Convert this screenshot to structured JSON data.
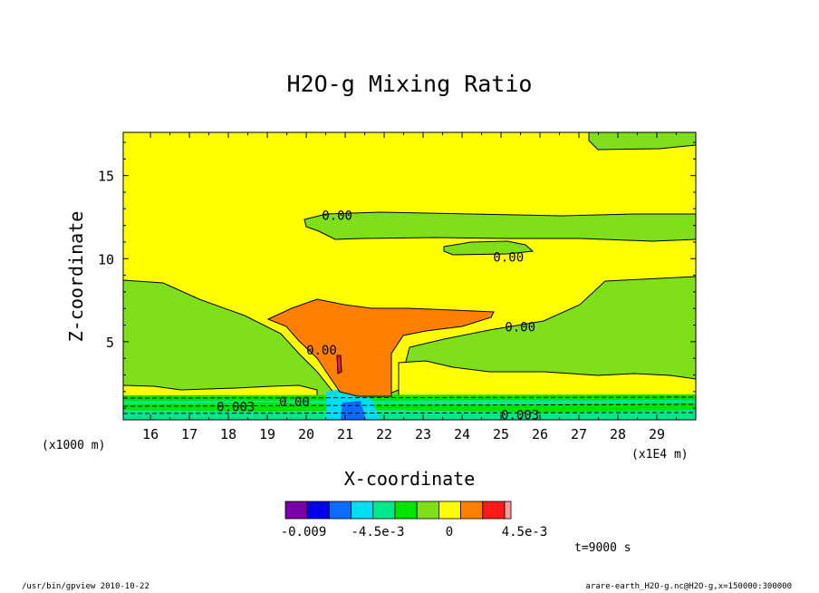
{
  "chart_data": {
    "type": "heatmap",
    "title": "H2O-g Mixing Ratio",
    "xlabel": "X-coordinate",
    "ylabel": "Z-coordinate",
    "x_unit_label": "(x1E4 m)",
    "y_unit_label": "(x1000 m)",
    "xlim": [
      15.3,
      30.0
    ],
    "ylim": [
      0.3,
      17.6
    ],
    "x_ticks": [
      "16",
      "17",
      "18",
      "19",
      "20",
      "21",
      "22",
      "23",
      "24",
      "25",
      "26",
      "27",
      "28",
      "29"
    ],
    "y_ticks": [
      "5",
      "10",
      "15"
    ],
    "contour_labels": [
      {
        "text": "0.00",
        "x": 20.4,
        "y": 12.6
      },
      {
        "text": "0.00",
        "x": 24.8,
        "y": 10.1
      },
      {
        "text": "0.00",
        "x": 25.1,
        "y": 5.9
      },
      {
        "text": "0.00",
        "x": 20.0,
        "y": 4.5
      },
      {
        "text": "0.00",
        "x": 19.3,
        "y": 1.4
      },
      {
        "text": "0.003",
        "x": 17.7,
        "y": 1.1
      },
      {
        "text": "0.003",
        "x": 25.0,
        "y": 0.6
      }
    ],
    "colorbar": {
      "colors": [
        "#7a00a8",
        "#0000e6",
        "#0c6cff",
        "#00ddf0",
        "#00e88c",
        "#00e400",
        "#7fe01a",
        "#ffff00",
        "#ff7f00",
        "#ff1a1a",
        "#ff9a9a"
      ],
      "tick_labels": [
        "-0.009",
        "-4.5e-3",
        "0",
        "4.5e-3"
      ]
    },
    "time_label": "t=9000 s"
  },
  "footer": {
    "left": "/usr/bin/gpview   2010-10-22",
    "right": "arare-earth_H2O-g.nc@H2O-g,x=150000:300000"
  }
}
